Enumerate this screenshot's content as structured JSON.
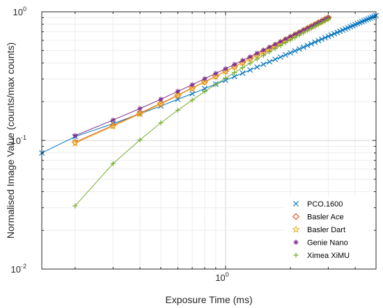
{
  "chart_data": {
    "type": "line",
    "title": "",
    "xlabel": "Exposure Time (ms)",
    "ylabel": "Normalised Image Value (counts/max counts)",
    "xscale": "log",
    "yscale": "log",
    "xlim": [
      0.14,
      5.0
    ],
    "ylim": [
      0.01,
      1.0
    ],
    "grid": true,
    "legend_position": "bottom-right",
    "x_ticks": [
      {
        "base": "10",
        "exp": "0",
        "value": 1
      }
    ],
    "y_ticks": [
      {
        "base": "10",
        "exp": "0",
        "value": 1
      },
      {
        "base": "10",
        "exp": "-1",
        "value": 0.1
      },
      {
        "base": "10",
        "exp": "-2",
        "value": 0.01
      }
    ],
    "series": [
      {
        "name": "PCO.1600",
        "color": "#0072BD",
        "marker": "x",
        "x": [
          0.14,
          0.2,
          0.3,
          0.4,
          0.5,
          0.6,
          0.7,
          0.8,
          0.9,
          1.0,
          1.1,
          1.2,
          1.3,
          1.4,
          1.5,
          1.6,
          1.7,
          1.8,
          1.9,
          2.0,
          2.1,
          2.2,
          2.3,
          2.4,
          2.5,
          2.6,
          2.7,
          2.8,
          2.9,
          3.0,
          3.1,
          3.2,
          3.3,
          3.4,
          3.5,
          3.6,
          3.7,
          3.8,
          3.9,
          4.0,
          4.1,
          4.2,
          4.3,
          4.4,
          4.5,
          4.6,
          4.7,
          4.8,
          4.9,
          5.0
        ],
        "y": [
          0.08,
          0.107,
          0.135,
          0.161,
          0.185,
          0.209,
          0.231,
          0.253,
          0.274,
          0.294,
          0.314,
          0.334,
          0.353,
          0.372,
          0.391,
          0.409,
          0.427,
          0.445,
          0.463,
          0.48,
          0.497,
          0.514,
          0.531,
          0.548,
          0.564,
          0.581,
          0.597,
          0.613,
          0.629,
          0.645,
          0.66,
          0.676,
          0.691,
          0.706,
          0.721,
          0.736,
          0.751,
          0.766,
          0.78,
          0.795,
          0.809,
          0.824,
          0.838,
          0.852,
          0.866,
          0.88,
          0.894,
          0.907,
          0.921,
          0.935
        ]
      },
      {
        "name": "Basler Ace",
        "color": "#D95319",
        "marker": "diamond",
        "x": [
          0.2,
          0.3,
          0.4,
          0.5,
          0.6,
          0.7,
          0.8,
          0.9,
          1.0,
          1.1,
          1.2,
          1.3,
          1.4,
          1.5,
          1.6,
          1.7,
          1.8,
          1.9,
          2.0,
          2.1,
          2.2,
          2.3,
          2.4,
          2.5,
          2.6,
          2.7,
          2.8,
          2.9,
          3.0
        ],
        "y": [
          0.097,
          0.131,
          0.163,
          0.194,
          0.225,
          0.256,
          0.286,
          0.316,
          0.346,
          0.375,
          0.404,
          0.433,
          0.462,
          0.491,
          0.519,
          0.547,
          0.575,
          0.603,
          0.631,
          0.658,
          0.686,
          0.713,
          0.74,
          0.767,
          0.794,
          0.821,
          0.847,
          0.874,
          0.9
        ]
      },
      {
        "name": "Basler Dart",
        "color": "#EDB120",
        "marker": "star",
        "x": [
          0.2,
          0.3,
          0.4,
          0.5,
          0.6,
          0.7,
          0.8,
          0.9,
          1.0,
          1.1,
          1.2,
          1.3,
          1.4,
          1.5,
          1.6,
          1.7,
          1.8,
          1.9,
          2.0,
          2.1,
          2.2,
          2.3,
          2.4,
          2.5,
          2.6,
          2.7,
          2.8,
          2.9,
          3.0
        ],
        "y": [
          0.095,
          0.129,
          0.161,
          0.192,
          0.223,
          0.254,
          0.284,
          0.314,
          0.344,
          0.373,
          0.403,
          0.432,
          0.461,
          0.49,
          0.518,
          0.547,
          0.575,
          0.603,
          0.631,
          0.659,
          0.686,
          0.714,
          0.741,
          0.768,
          0.795,
          0.822,
          0.849,
          0.876,
          0.902
        ]
      },
      {
        "name": "Genie Nano",
        "color": "#7E2F8E",
        "marker": "asterisk",
        "x": [
          0.2,
          0.3,
          0.4,
          0.5,
          0.6,
          0.7,
          0.8,
          0.9,
          1.0,
          1.1,
          1.2,
          1.3,
          1.4,
          1.5,
          1.6,
          1.7,
          1.8,
          1.9,
          2.0,
          2.1,
          2.2,
          2.3,
          2.4,
          2.5,
          2.6,
          2.7,
          2.8,
          2.9,
          3.0
        ],
        "y": [
          0.109,
          0.144,
          0.177,
          0.209,
          0.241,
          0.271,
          0.302,
          0.332,
          0.361,
          0.39,
          0.419,
          0.447,
          0.476,
          0.504,
          0.532,
          0.559,
          0.586,
          0.614,
          0.641,
          0.668,
          0.694,
          0.721,
          0.747,
          0.773,
          0.8,
          0.826,
          0.851,
          0.877,
          0.903
        ]
      },
      {
        "name": "Ximea XiMU",
        "color": "#77AC30",
        "marker": "plus",
        "x": [
          0.2,
          0.3,
          0.4,
          0.5,
          0.6,
          0.7,
          0.8,
          0.9,
          1.0,
          1.1,
          1.2,
          1.3,
          1.4,
          1.5,
          1.6,
          1.7,
          1.8,
          1.9,
          2.0,
          2.1,
          2.2,
          2.3,
          2.4,
          2.5,
          2.6,
          2.7,
          2.8,
          2.9,
          3.0
        ],
        "y": [
          0.031,
          0.066,
          0.101,
          0.137,
          0.172,
          0.206,
          0.24,
          0.273,
          0.305,
          0.337,
          0.368,
          0.398,
          0.429,
          0.458,
          0.488,
          0.517,
          0.546,
          0.575,
          0.603,
          0.631,
          0.659,
          0.687,
          0.714,
          0.742,
          0.769,
          0.796,
          0.823,
          0.85,
          0.877
        ]
      }
    ]
  }
}
